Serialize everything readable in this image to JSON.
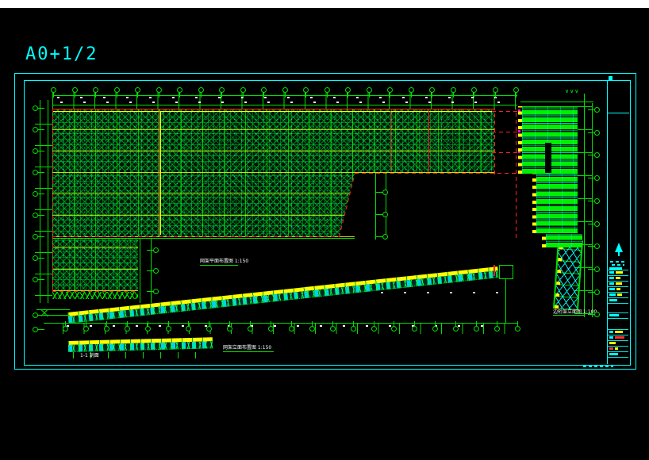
{
  "page": {
    "background": "#000000",
    "top_strip_color": "#ffffff"
  },
  "sheet": {
    "code": "A0+1/2",
    "frame_color": "#00ffff"
  },
  "labels": {
    "plan_title": "网架平面布置图 1:150",
    "elevation_title": "网架立面布置图 1:150",
    "section_title": "1-1 剖面",
    "side_elevation_title": "边桁架立面图 1:100"
  },
  "icons": {
    "direction_arrows": "∨∨∨"
  },
  "colors": {
    "grid_green": "#00e000",
    "bright_green": "#00ff00",
    "hatch_bg": "#001500",
    "chord_yellow": "#ffff00",
    "web_cyan": "#00ffff",
    "axis_red": "#ff2020",
    "node_magenta": "#ff00ff",
    "dim_white": "#ffffff",
    "frame_cyan": "#00ffff"
  },
  "grid": {
    "top_bubble_count": 23,
    "left_bubble_count": 9,
    "right_bubble_count": 10,
    "baseline_bubble_count": 23,
    "mid_bubble_count": 3,
    "lower_left_bubble_count": 3
  },
  "louvers": {
    "group_bar_counts": [
      9,
      8,
      2
    ]
  },
  "titleblock": {
    "rows": [
      {
        "h": 5,
        "frags": [
          {
            "c": "#00ffff",
            "w": 16
          }
        ]
      },
      {
        "h": 7,
        "frags": [
          {
            "c": "#00ffff",
            "w": 6
          },
          {
            "c": "#ffff00",
            "w": 9
          }
        ]
      },
      {
        "h": 7,
        "frags": [
          {
            "c": "#00ffff",
            "w": 6
          },
          {
            "c": "#ffff00",
            "w": 6
          }
        ]
      },
      {
        "h": 7,
        "frags": [
          {
            "c": "#00ffff",
            "w": 6
          },
          {
            "c": "#ffff00",
            "w": 8
          }
        ]
      },
      {
        "h": 7,
        "frags": [
          {
            "c": "#00ffff",
            "w": 7
          },
          {
            "c": "#ffff00",
            "w": 5
          }
        ]
      },
      {
        "h": 7,
        "frags": [
          {
            "c": "#00ffff",
            "w": 8
          },
          {
            "c": "#ffff00",
            "w": 6
          }
        ]
      },
      {
        "h": 7,
        "frags": [
          {
            "c": "#00ffff",
            "w": 10
          }
        ]
      },
      {
        "h": 12,
        "frags": []
      },
      {
        "h": 7,
        "frags": [
          {
            "c": "#00ffff",
            "w": 12
          }
        ]
      },
      {
        "h": 14,
        "frags": []
      },
      {
        "h": 7,
        "frags": [
          {
            "c": "#00ffff",
            "w": 5
          },
          {
            "c": "#ffff00",
            "w": 10
          }
        ]
      },
      {
        "h": 7,
        "frags": [
          {
            "c": "#00ffff",
            "w": 5
          },
          {
            "c": "#ff3030",
            "w": 12
          }
        ]
      },
      {
        "h": 7,
        "frags": [
          {
            "c": "#ffff00",
            "w": 8
          }
        ]
      },
      {
        "h": 7,
        "frags": [
          {
            "c": "#ff3030",
            "w": 5
          },
          {
            "c": "#ffff00",
            "w": 4
          }
        ]
      },
      {
        "h": 7,
        "frags": [
          {
            "c": "#00ffff",
            "w": 11
          }
        ]
      }
    ]
  }
}
